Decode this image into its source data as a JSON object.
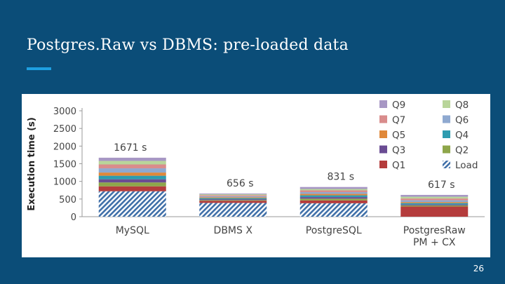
{
  "slide": {
    "title": "Postgres.Raw vs DBMS: pre-loaded data",
    "page_number": "26",
    "accent_color": "#1e9fe0",
    "background_color": "#0b4d78"
  },
  "chart_data": {
    "type": "bar",
    "stacked": true,
    "title": "",
    "xlabel": "",
    "ylabel": "Execution time (s)",
    "ylim": [
      0,
      3000
    ],
    "yticks": [
      0,
      500,
      1000,
      1500,
      2000,
      2500,
      3000
    ],
    "categories": [
      "MySQL",
      "DBMS X",
      "PostgreSQL",
      "PostgresRaw\nPM + CX"
    ],
    "totals_labels": [
      "1671 s",
      "656 s",
      "831 s",
      "617 s"
    ],
    "legend_position": "top-right",
    "grid": false,
    "series": [
      {
        "name": "Load",
        "color": "#3f6fa8",
        "pattern": "hatch",
        "values": [
          720,
          390,
          380,
          0
        ]
      },
      {
        "name": "Q1",
        "color": "#b43c3c",
        "values": [
          140,
          60,
          80,
          290
        ]
      },
      {
        "name": "Q2",
        "color": "#8ea64a",
        "values": [
          110,
          20,
          50,
          30
        ]
      },
      {
        "name": "Q3",
        "color": "#6a4c93",
        "values": [
          90,
          25,
          45,
          25
        ]
      },
      {
        "name": "Q4",
        "color": "#2e9cb0",
        "values": [
          100,
          30,
          50,
          40
        ]
      },
      {
        "name": "Q5",
        "color": "#e0883a",
        "values": [
          90,
          25,
          40,
          30
        ]
      },
      {
        "name": "Q6",
        "color": "#8fa9d0",
        "values": [
          120,
          30,
          50,
          50
        ]
      },
      {
        "name": "Q7",
        "color": "#d98c8c",
        "values": [
          110,
          30,
          50,
          50
        ]
      },
      {
        "name": "Q8",
        "color": "#b9d59a",
        "values": [
          100,
          25,
          40,
          50
        ]
      },
      {
        "name": "Q9",
        "color": "#a797c4",
        "values": [
          91,
          21,
          56,
          52
        ]
      }
    ],
    "legend_order": [
      [
        "Q9",
        "Q8"
      ],
      [
        "Q7",
        "Q6"
      ],
      [
        "Q5",
        "Q4"
      ],
      [
        "Q3",
        "Q2"
      ],
      [
        "Q1",
        "Load"
      ]
    ]
  }
}
